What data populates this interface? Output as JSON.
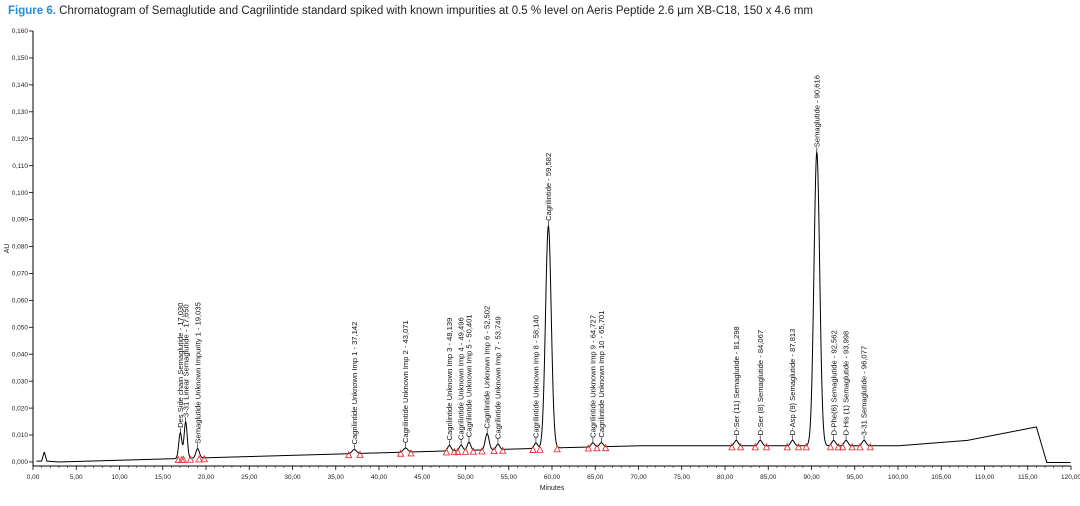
{
  "caption": {
    "figure_label": "Figure 6.",
    "text": " Chromatogram of Semaglutide and Cagrilintide standard spiked with known impurities at 0.5 % level on Aeris Peptide 2.6 µm XB-C18, 150 x 4.6 mm"
  },
  "colors": {
    "trace": "#000000",
    "baseline_markers": "#e8343a",
    "caption_label": "#1f8fd6"
  },
  "chart_data": {
    "type": "line",
    "xlabel": "Minutes",
    "ylabel": "AU",
    "xlim": [
      0,
      120
    ],
    "ylim": [
      -0.0015,
      0.16
    ],
    "x_ticks": [
      "0,00",
      "5,00",
      "10,00",
      "15,00",
      "20,00",
      "25,00",
      "30,00",
      "35,00",
      "40,00",
      "45,00",
      "50,00",
      "55,00",
      "60,00",
      "65,00",
      "70,00",
      "75,00",
      "80,00",
      "85,00",
      "90,00",
      "95,00",
      "100,00",
      "105,00",
      "110,00",
      "115,00",
      "120,00"
    ],
    "y_ticks": [
      "0,000",
      "0,010",
      "0,020",
      "0,030",
      "0,040",
      "0,050",
      "0,060",
      "0,070",
      "0,080",
      "0,090",
      "0,100",
      "0,110",
      "0,120",
      "0,130",
      "0,140",
      "0,150",
      "0,160"
    ],
    "peaks": [
      {
        "label": "Des Side chain Semaglutide - 17,030",
        "rt": 17.03,
        "height": 0.0095,
        "width": 0.18
      },
      {
        "label": "3-31 Linear Semaglutide - 17,650",
        "rt": 17.65,
        "height": 0.0135,
        "width": 0.18
      },
      {
        "label": "Semaglutide Unknown Impurity 1 - 19,035",
        "rt": 19.035,
        "height": 0.0035,
        "width": 0.2
      },
      {
        "label": "Cagrilintide Unknown Imp 1 - 37,142",
        "rt": 37.142,
        "height": 0.0015,
        "width": 0.25
      },
      {
        "label": "Cagrilintide Unknown Imp 2 - 43,071",
        "rt": 43.071,
        "height": 0.0015,
        "width": 0.25
      },
      {
        "label": "Cagrilintide Unknown Imp 3 - 48,139",
        "rt": 48.139,
        "height": 0.002,
        "width": 0.2
      },
      {
        "label": "Cagrilintide Unknown Imp 4 - 49,496",
        "rt": 49.496,
        "height": 0.002,
        "width": 0.2
      },
      {
        "label": "Cagrilintide Unknown Imp 5 - 50,401",
        "rt": 50.401,
        "height": 0.003,
        "width": 0.2
      },
      {
        "label": "Cagrilintide Unknown Imp 6 - 52,502",
        "rt": 52.502,
        "height": 0.006,
        "width": 0.22
      },
      {
        "label": "Cagrilintide Unknown Imp 7 - 53,749",
        "rt": 53.749,
        "height": 0.002,
        "width": 0.2
      },
      {
        "label": "Cagrilintide Unknown Imp 8 - 58,140",
        "rt": 58.14,
        "height": 0.002,
        "width": 0.2
      },
      {
        "label": "Cagrilintide - 59,582",
        "rt": 59.582,
        "height": 0.0825,
        "width": 0.33
      },
      {
        "label": "Cagrilintide Unknown Imp 9 - 64,727",
        "rt": 64.727,
        "height": 0.0015,
        "width": 0.2
      },
      {
        "label": "Cagrilintide Unknown Imp 10 - 65,701",
        "rt": 65.701,
        "height": 0.0015,
        "width": 0.2
      },
      {
        "label": "D-Ser (11) Semaglutide - 81,298",
        "rt": 81.298,
        "height": 0.002,
        "width": 0.22
      },
      {
        "label": "D-Ser (8) Semaglutide - 84,067",
        "rt": 84.067,
        "height": 0.002,
        "width": 0.22
      },
      {
        "label": "D-Asp (9) Semaglutide - 87,813",
        "rt": 87.813,
        "height": 0.002,
        "width": 0.22
      },
      {
        "label": "Semaglutide - 90,616",
        "rt": 90.616,
        "height": 0.109,
        "width": 0.33
      },
      {
        "label": "D-Phe(6) Semaglutide - 92,562",
        "rt": 92.562,
        "height": 0.002,
        "width": 0.22
      },
      {
        "label": "D-His (1) Semaglutide - 93,998",
        "rt": 93.998,
        "height": 0.002,
        "width": 0.22
      },
      {
        "label": "3-31 Semaglutide - 96,077",
        "rt": 96.077,
        "height": 0.002,
        "width": 0.22
      }
    ],
    "baseline_markers": [
      16.8,
      17.2,
      17.4,
      18.2,
      19.2,
      19.8,
      36.5,
      37.8,
      42.5,
      43.7,
      47.8,
      48.7,
      49.1,
      50.0,
      50.9,
      51.9,
      53.3,
      54.3,
      57.8,
      58.6,
      60.6,
      64.2,
      65.2,
      66.2,
      80.8,
      81.8,
      83.5,
      84.8,
      87.2,
      88.5,
      89.4,
      92.2,
      93.1,
      93.6,
      94.7,
      95.6,
      96.8
    ]
  }
}
